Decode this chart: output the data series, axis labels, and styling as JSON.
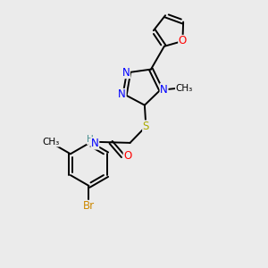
{
  "bg_color": "#ebebeb",
  "bond_color": "#000000",
  "atom_colors": {
    "N": "#0000ff",
    "O": "#ff0000",
    "S": "#aaaa00",
    "Br": "#cc8800",
    "C": "#000000",
    "H": "#4a9090"
  },
  "lw": 1.4,
  "fs": 8.5,
  "fs_small": 7.5
}
